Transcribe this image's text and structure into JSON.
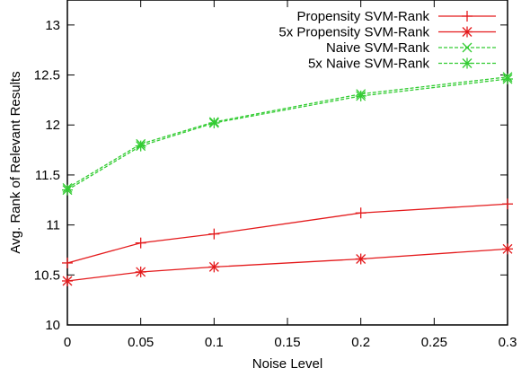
{
  "chart_data": {
    "type": "line",
    "xlabel": "Noise Level",
    "ylabel": "Avg. Rank of Relevant Results",
    "xlim": [
      0,
      0.3
    ],
    "ylim": [
      10,
      13.25
    ],
    "xticks": [
      0,
      0.05,
      0.1,
      0.15,
      0.2,
      0.25,
      0.3
    ],
    "yticks": [
      10,
      10.5,
      11,
      11.5,
      12,
      12.5,
      13
    ],
    "xtick_labels": [
      "0",
      "0.05",
      "0.1",
      "0.15",
      "0.2",
      "0.25",
      "0.3"
    ],
    "ytick_labels": [
      "10",
      "10.5",
      "11",
      "11.5",
      "12",
      "12.5",
      "13"
    ],
    "x": [
      0,
      0.05,
      0.1,
      0.2,
      0.3
    ],
    "legend_position": "top-right",
    "grid": false,
    "series": [
      {
        "name": "Propensity SVM-Rank",
        "values": [
          10.62,
          10.82,
          10.91,
          11.12,
          11.21
        ],
        "color": "#e41a1c",
        "marker": "plus",
        "dash": "solid"
      },
      {
        "name": "5x Propensity SVM-Rank",
        "values": [
          10.44,
          10.53,
          10.58,
          10.66,
          10.76
        ],
        "color": "#e41a1c",
        "marker": "star",
        "dash": "solid"
      },
      {
        "name": "Naive SVM-Rank",
        "values": [
          11.37,
          11.81,
          12.03,
          12.31,
          12.48
        ],
        "color": "#33cc33",
        "marker": "cross",
        "dash": "dashed"
      },
      {
        "name": "5x Naive SVM-Rank",
        "values": [
          11.35,
          11.79,
          12.02,
          12.29,
          12.46
        ],
        "color": "#33cc33",
        "marker": "star",
        "dash": "dashed"
      }
    ]
  }
}
